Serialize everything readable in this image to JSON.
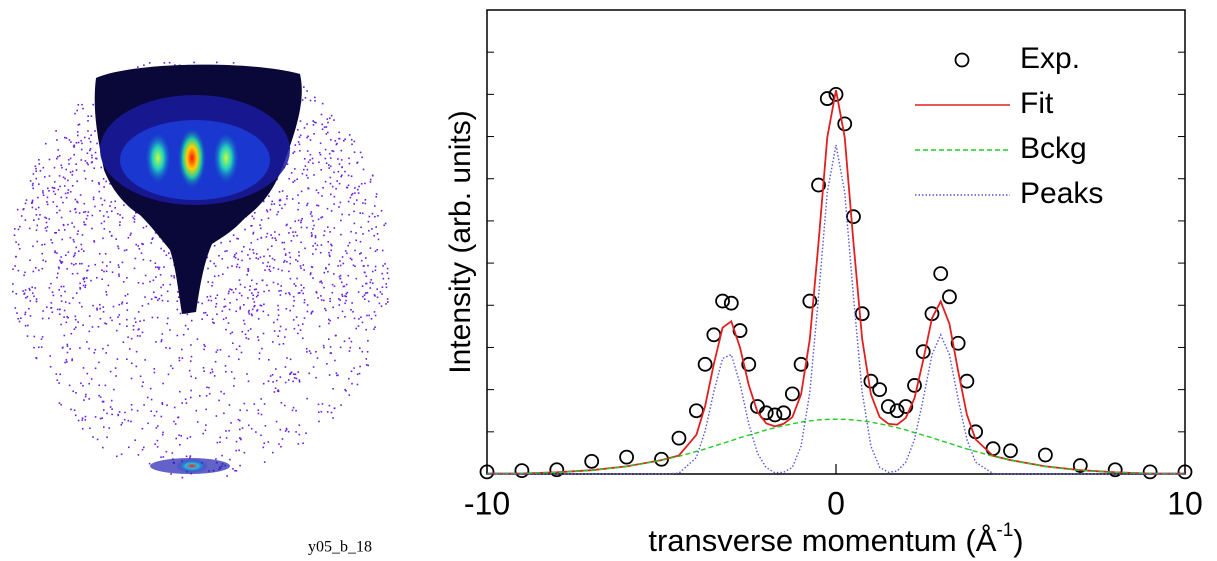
{
  "image_caption": "y05_b_18",
  "chart_data": {
    "type": "line",
    "xlabel": [
      "transverse momentum (Å",
      "-1",
      ")"
    ],
    "ylabel": "Intensity (arb. units)",
    "xlim": [
      -10,
      10
    ],
    "xticks": [
      -10,
      0,
      10
    ],
    "ylim": [
      0,
      11
    ],
    "yticks": [
      0,
      1,
      2,
      3,
      4,
      5,
      6,
      7,
      8,
      9,
      10
    ],
    "legend": "upper right",
    "x": [
      -10,
      -9,
      -8,
      -7,
      -6,
      -5,
      -4.5,
      -4,
      -3.75,
      -3.5,
      -3.25,
      -3,
      -2.75,
      -2.5,
      -2.25,
      -2,
      -1.75,
      -1.5,
      -1.25,
      -1,
      -0.75,
      -0.5,
      -0.25,
      0,
      0.25,
      0.5,
      0.75,
      1,
      1.25,
      1.5,
      1.75,
      2,
      2.25,
      2.5,
      2.75,
      3,
      3.25,
      3.5,
      3.75,
      4,
      4.5,
      5,
      6,
      7,
      8,
      9,
      10
    ],
    "series": [
      {
        "name": "Exp.",
        "style": "markers",
        "color": "#000000",
        "values": [
          0.05,
          0.08,
          0.1,
          0.3,
          0.4,
          0.35,
          0.85,
          1.5,
          2.6,
          3.3,
          4.1,
          4.05,
          3.4,
          2.6,
          1.6,
          1.45,
          1.4,
          1.45,
          1.9,
          2.6,
          4.1,
          6.85,
          8.9,
          9.0,
          8.3,
          6.1,
          3.8,
          2.2,
          2.0,
          1.6,
          1.5,
          1.6,
          2.1,
          2.9,
          3.8,
          4.75,
          4.2,
          3.1,
          2.2,
          1.0,
          0.6,
          0.55,
          0.45,
          0.2,
          0.1,
          0.05,
          0.05
        ]
      },
      {
        "name": "Fit",
        "style": "solid",
        "color": "#e02020",
        "values": [
          0.01,
          0.01,
          0.04,
          0.09,
          0.18,
          0.33,
          0.44,
          0.93,
          1.61,
          2.61,
          3.47,
          3.62,
          3.0,
          2.11,
          1.47,
          1.2,
          1.13,
          1.19,
          1.35,
          1.89,
          3.2,
          5.49,
          7.98,
          9.1,
          7.98,
          5.49,
          3.2,
          1.89,
          1.35,
          1.19,
          1.17,
          1.33,
          1.8,
          2.7,
          3.69,
          4.09,
          3.56,
          2.44,
          1.41,
          0.82,
          0.43,
          0.33,
          0.18,
          0.09,
          0.04,
          0.01,
          0.01
        ]
      },
      {
        "name": "Bckg",
        "style": "dashed",
        "color": "#22cc22",
        "values": [
          0.005,
          0.014,
          0.037,
          0.086,
          0.176,
          0.325,
          0.42,
          0.535,
          0.594,
          0.66,
          0.726,
          0.79,
          0.86,
          0.92,
          0.98,
          1.045,
          1.098,
          1.147,
          1.19,
          1.23,
          1.26,
          1.282,
          1.295,
          1.3,
          1.295,
          1.282,
          1.26,
          1.23,
          1.19,
          1.147,
          1.098,
          1.045,
          0.98,
          0.92,
          0.86,
          0.79,
          0.726,
          0.66,
          0.594,
          0.535,
          0.42,
          0.325,
          0.176,
          0.086,
          0.037,
          0.014,
          0.005
        ]
      },
      {
        "name": "Peaks",
        "style": "dotted",
        "color": "#5555dd",
        "values": [
          0,
          0,
          0,
          0,
          0,
          0,
          0.02,
          0.39,
          1.02,
          1.95,
          2.74,
          2.83,
          2.14,
          1.19,
          0.49,
          0.15,
          0.03,
          0.04,
          0.16,
          0.66,
          1.94,
          4.21,
          6.68,
          7.8,
          6.68,
          4.21,
          1.94,
          0.66,
          0.16,
          0.04,
          0.07,
          0.28,
          0.82,
          1.78,
          2.83,
          3.3,
          2.83,
          1.78,
          0.82,
          0.28,
          0.01,
          0,
          0,
          0,
          0,
          0,
          0
        ]
      }
    ]
  }
}
